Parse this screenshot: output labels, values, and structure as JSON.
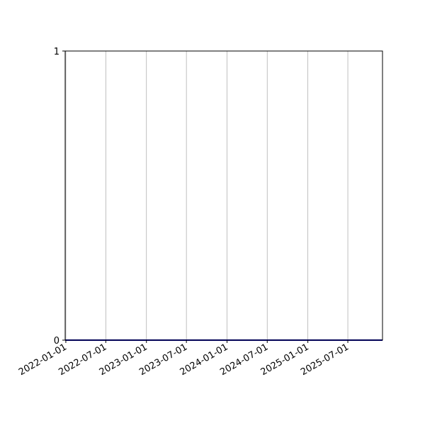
{
  "chart_data": {
    "type": "line",
    "title": "",
    "xlabel": "",
    "ylabel": "",
    "x_type": "date",
    "xlim": [
      "2021-12-29",
      "2025-12-05"
    ],
    "ylim": [
      0,
      1
    ],
    "x_ticks": [
      "2022-01-01",
      "2022-07-01",
      "2023-01-01",
      "2023-07-01",
      "2024-01-01",
      "2024-07-01",
      "2025-01-01",
      "2025-07-01"
    ],
    "y_ticks": [
      "0",
      "1"
    ],
    "grid": "vertical",
    "grid_color": "#b0b0b0",
    "series": [
      {
        "x": [
          "2021-12-29",
          "2025-12-05"
        ],
        "y": [
          0,
          0
        ],
        "color": "#0000aa"
      }
    ]
  }
}
